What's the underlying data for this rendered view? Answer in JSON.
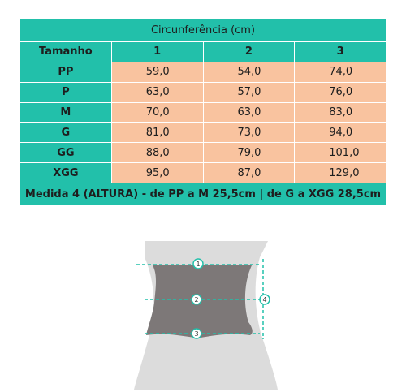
{
  "table": {
    "title": "Circunferência (cm)",
    "header": [
      "Tamanho",
      "1",
      "2",
      "3"
    ],
    "rows": [
      {
        "size": "PP",
        "m1": "59,0",
        "m2": "54,0",
        "m3": "74,0"
      },
      {
        "size": "P",
        "m1": "63,0",
        "m2": "57,0",
        "m3": "76,0"
      },
      {
        "size": "M",
        "m1": "70,0",
        "m2": "63,0",
        "m3": "83,0"
      },
      {
        "size": "G",
        "m1": "81,0",
        "m2": "73,0",
        "m3": "94,0"
      },
      {
        "size": "GG",
        "m1": "88,0",
        "m2": "79,0",
        "m3": "101,0"
      },
      {
        "size": "XGG",
        "m1": "95,0",
        "m2": "87,0",
        "m3": "129,0"
      }
    ],
    "footer": "Medida 4 (ALTURA) - de PP a M 25,5cm | de G a XGG 28,5cm"
  },
  "diagram": {
    "markers": [
      "1",
      "2",
      "3",
      "4"
    ],
    "colors": {
      "band": "#7d7878",
      "body": "#dcdcdc",
      "line": "#22c0aa"
    }
  }
}
